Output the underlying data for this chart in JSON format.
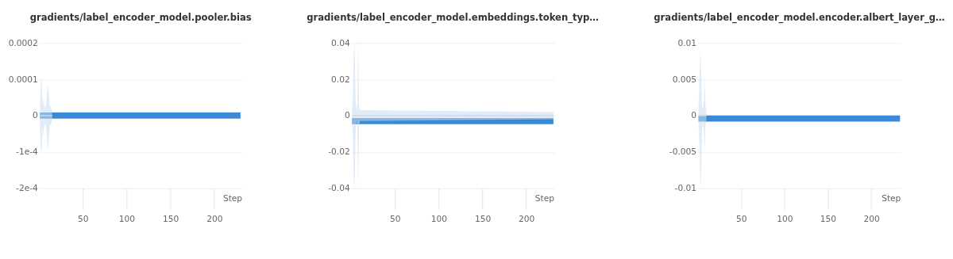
{
  "chart_data": [
    {
      "type": "line",
      "title": "gradients/label_encoder_model.pooler.bias",
      "xlabel": "Step",
      "xlim": [
        0,
        232
      ],
      "xticks": [
        50,
        100,
        150,
        200
      ],
      "ylim": [
        -0.0002,
        0.0002
      ],
      "yticks": [
        {
          "value": -0.0002,
          "label": "-2e-4"
        },
        {
          "value": -0.0001,
          "label": "-1e-4"
        },
        0,
        0.0001,
        0.0002
      ],
      "grid": "y",
      "series": [
        {
          "color": "#c9dcf0",
          "x": [
            1,
            2,
            3,
            4,
            5,
            6,
            8,
            10,
            12,
            14,
            15
          ],
          "values": [
            0,
            0,
            0,
            0,
            0,
            0,
            0,
            0,
            0,
            0,
            0
          ],
          "lower": [
            -2e-05,
            -9e-05,
            -0.0001,
            -3e-05,
            -6e-05,
            -2e-05,
            -3e-05,
            -0.0001,
            -3e-05,
            -2e-05,
            -1e-05
          ],
          "upper": [
            2e-05,
            9e-05,
            0.0001,
            3e-05,
            5e-05,
            2e-05,
            3e-05,
            9e-05,
            3e-05,
            2e-05,
            1e-05
          ]
        },
        {
          "color": "#3a8ad6",
          "x": [
            1,
            230
          ],
          "values": [
            0,
            0
          ]
        }
      ]
    },
    {
      "type": "line",
      "title": "gradients/label_encoder_model.embeddings.token_typ…",
      "xlabel": "Step",
      "xlim": [
        0,
        232
      ],
      "xticks": [
        50,
        100,
        150,
        200
      ],
      "ylim": [
        -0.04,
        0.04
      ],
      "yticks": [
        -0.04,
        -0.02,
        0,
        0.02,
        0.04
      ],
      "grid": "y",
      "series": [
        {
          "color": "#c9dcf0",
          "x": [
            1,
            2,
            3,
            4,
            5,
            6,
            7,
            8,
            9,
            10,
            231
          ],
          "values": [
            0,
            0,
            0,
            0,
            0,
            0,
            0,
            0,
            0,
            0,
            0
          ],
          "lower": [
            -0.003,
            -0.01,
            -0.035,
            -0.04,
            -0.01,
            -0.003,
            -0.005,
            -0.04,
            -0.005,
            -0.003,
            -0.002
          ],
          "upper": [
            0.002,
            0.01,
            0.035,
            0.04,
            0.01,
            0.003,
            0.005,
            0.04,
            0.005,
            0.003,
            0.002
          ]
        },
        {
          "color": "#3a8ad6",
          "x": [
            1,
            231
          ],
          "values": [
            -0.003,
            -0.003
          ]
        }
      ]
    },
    {
      "type": "line",
      "title": "gradients/label_encoder_model.encoder.albert_layer_g…",
      "xlabel": "Step",
      "xlim": [
        0,
        234
      ],
      "xticks": [
        50,
        100,
        150,
        200
      ],
      "ylim": [
        -0.01,
        0.01
      ],
      "yticks": [
        -0.01,
        -0.005,
        0,
        0.005,
        0.01
      ],
      "grid": "y",
      "series": [
        {
          "color": "#c9dcf0",
          "x": [
            1,
            2,
            3,
            4,
            5,
            6,
            7,
            8,
            9,
            10
          ],
          "values": [
            0,
            0,
            0,
            0,
            0,
            0,
            0,
            0,
            0,
            0
          ],
          "lower": [
            -0.001,
            -0.004,
            -0.01,
            -0.008,
            -0.002,
            -0.001,
            -0.002,
            -0.005,
            -0.001,
            -0.001
          ],
          "upper": [
            0.001,
            0.005,
            0.009,
            0.006,
            0.001,
            0.001,
            0.002,
            0.005,
            0.001,
            0.001
          ]
        },
        {
          "color": "#3a8ad6",
          "x": [
            1,
            233
          ],
          "values": [
            -0.0004,
            -0.0004
          ]
        }
      ]
    }
  ]
}
